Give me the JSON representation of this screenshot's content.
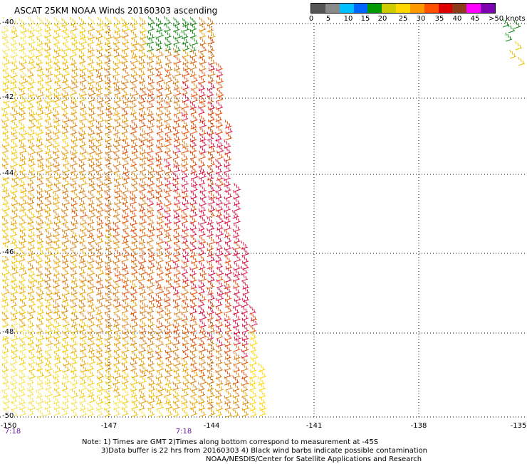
{
  "title": "ASCAT 25KM NOAA Winds 20160303 ascending",
  "legend": {
    "colors": [
      "#555555",
      "#8a8a8a",
      "#00c0ff",
      "#0066ff",
      "#009900",
      "#cccc00",
      "#ffd800",
      "#ff9900",
      "#ff5000",
      "#dd0000",
      "#8b3a1a",
      "#ff00ff",
      "#7a00b0"
    ],
    "labels": [
      "0",
      "5",
      "10",
      "15",
      "20",
      "25",
      "30",
      "35",
      "40",
      "45",
      ">50 knots"
    ]
  },
  "lat_labels": [
    "-40",
    "-42",
    "-44",
    "-46",
    "-48",
    "-50"
  ],
  "lon_labels": [
    "-150",
    "-147",
    "-144",
    "-141",
    "-138",
    "-135"
  ],
  "time_labels": [
    "7:18",
    "7:18"
  ],
  "notes": {
    "line1": "Note: 1) Times are GMT 2)Times along bottom correspond to measurement at -45S",
    "line2": "3)Data buffer is 22 hrs from 20160303 4) Black wind barbs indicate possible contamination",
    "line3": "NOAA/NESDIS/Center for Satellite Applications and Research"
  }
}
